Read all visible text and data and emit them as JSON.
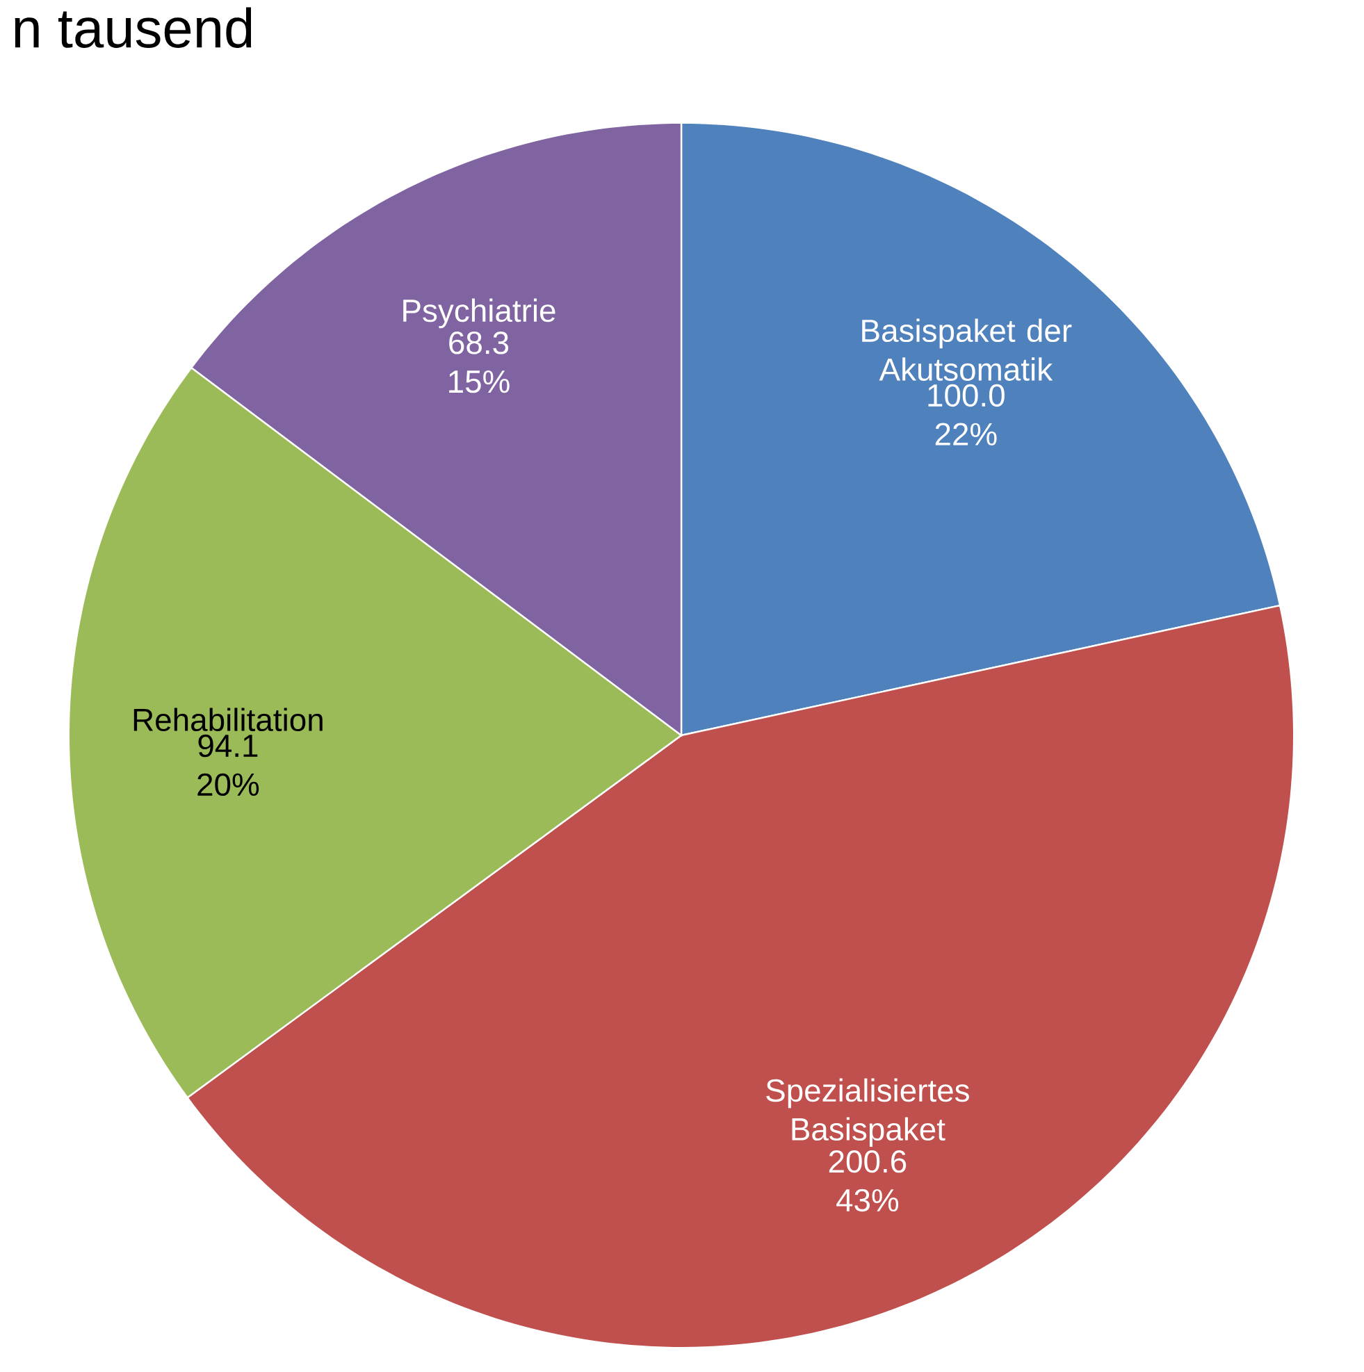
{
  "chart_data": {
    "type": "pie",
    "title": "n tausend",
    "categories": [
      "Basispaket der Akutsomatik",
      "Spezialisiertes Basispaket",
      "Rehabilitation",
      "Psychiatrie"
    ],
    "values": [
      100.0,
      200.6,
      94.1,
      68.3
    ],
    "colors": [
      "#4f81bd",
      "#c0504d",
      "#9bbb59",
      "#8064a2"
    ],
    "value_labels": [
      "100.0 22%",
      "200.6 43%",
      "94.1 20%",
      "68.3 15%"
    ]
  }
}
